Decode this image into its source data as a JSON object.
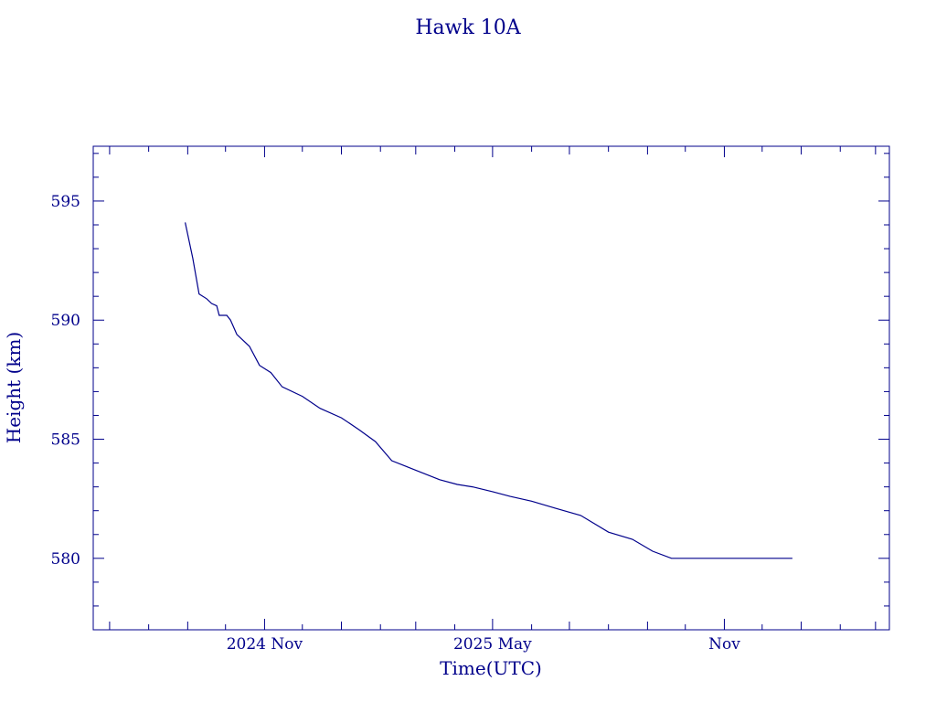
{
  "chart_data": {
    "type": "line",
    "title": "Hawk 10A",
    "xlabel": "Time(UTC)",
    "ylabel": "Height (km)",
    "x_ticks": [
      "2024 Nov",
      "2025 May",
      "Nov"
    ],
    "y_ticks": [
      580,
      585,
      590,
      595
    ],
    "ylim": [
      577,
      597.3
    ],
    "xlim": [
      "2024-06-18",
      "2026-03-12"
    ],
    "grid": false,
    "series": [
      {
        "x": [
          "2024-08-30",
          "2024-09-05",
          "2024-09-10",
          "2024-09-16",
          "2024-09-20",
          "2024-09-24",
          "2024-09-26",
          "2024-09-30",
          "2024-10-02",
          "2024-10-05",
          "2024-10-10",
          "2024-10-20",
          "2024-10-28",
          "2024-11-06",
          "2024-11-15",
          "2024-12-01",
          "2024-12-15",
          "2025-01-01",
          "2025-01-15",
          "2025-01-28",
          "2025-02-10",
          "2025-03-01",
          "2025-03-20",
          "2025-04-03",
          "2025-04-15",
          "2025-05-01",
          "2025-05-15",
          "2025-06-01",
          "2025-06-20",
          "2025-07-10",
          "2025-08-01",
          "2025-08-20",
          "2025-09-05",
          "2025-09-20",
          "2025-10-05",
          "2025-10-20",
          "2025-11-05",
          "2025-11-20",
          "2025-12-10",
          "2025-12-25"
        ],
        "y": [
          594.1,
          592.6,
          591.1,
          590.9,
          590.7,
          590.6,
          590.2,
          590.2,
          590.2,
          590.0,
          589.4,
          588.9,
          588.1,
          587.8,
          587.2,
          586.8,
          586.3,
          585.9,
          585.4,
          584.9,
          584.1,
          583.7,
          583.3,
          583.1,
          583.0,
          582.8,
          582.6,
          582.4,
          582.1,
          581.8,
          581.1,
          580.8,
          580.3,
          580.0,
          580.0,
          580.0,
          580.0,
          580.0,
          580.0,
          580.0
        ]
      }
    ]
  }
}
